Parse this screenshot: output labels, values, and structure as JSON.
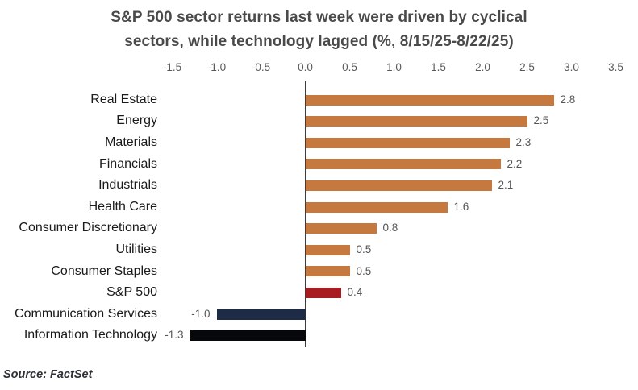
{
  "title": {
    "line1": "S&P 500 sector returns last week were driven by cyclical",
    "line2": "sectors, while technology lagged (%, 8/15/25-8/22/25)"
  },
  "source": "Source: FactSet",
  "chart_data": {
    "type": "bar",
    "orientation": "horizontal",
    "title": "S&P 500 sector returns last week were driven by cyclical sectors, while technology lagged (%, 8/15/25-8/22/25)",
    "categories": [
      "Real Estate",
      "Energy",
      "Materials",
      "Financials",
      "Industrials",
      "Health Care",
      "Consumer Discretionary",
      "Utilities",
      "Consumer Staples",
      "S&P 500",
      "Communication Services",
      "Information Technology"
    ],
    "values": [
      2.8,
      2.5,
      2.3,
      2.2,
      2.1,
      1.6,
      0.8,
      0.5,
      0.5,
      0.4,
      -1.0,
      -1.3
    ],
    "value_labels": [
      "2.8",
      "2.5",
      "2.3",
      "2.2",
      "2.1",
      "1.6",
      "0.8",
      "0.5",
      "0.5",
      "0.4",
      "-1.0",
      "-1.3"
    ],
    "bar_colors": [
      "#C6793F",
      "#C6793F",
      "#C6793F",
      "#C6793F",
      "#C6793F",
      "#C6793F",
      "#C6793F",
      "#C6793F",
      "#C6793F",
      "#A61C21",
      "#1D2B47",
      "#07080C"
    ],
    "axis": {
      "position": "top",
      "min": -1.5,
      "max": 3.5,
      "step": 0.5,
      "tick_labels": [
        "-1.5",
        "-1.0",
        "-0.5",
        "0.0",
        "0.5",
        "1.0",
        "1.5",
        "2.0",
        "2.5",
        "3.0",
        "3.5"
      ]
    },
    "grid": false,
    "legend": false,
    "colors": {
      "sector_bar": "#C6793F",
      "sp500_bar": "#A61C21",
      "communication_services_bar": "#1D2B47",
      "information_technology_bar": "#07080C",
      "axis_line": "#3C3C3C",
      "title_text": "#4A4A4A",
      "tick_text": "#595959",
      "value_text": "#555555",
      "category_text": "#1A1A1A"
    }
  }
}
